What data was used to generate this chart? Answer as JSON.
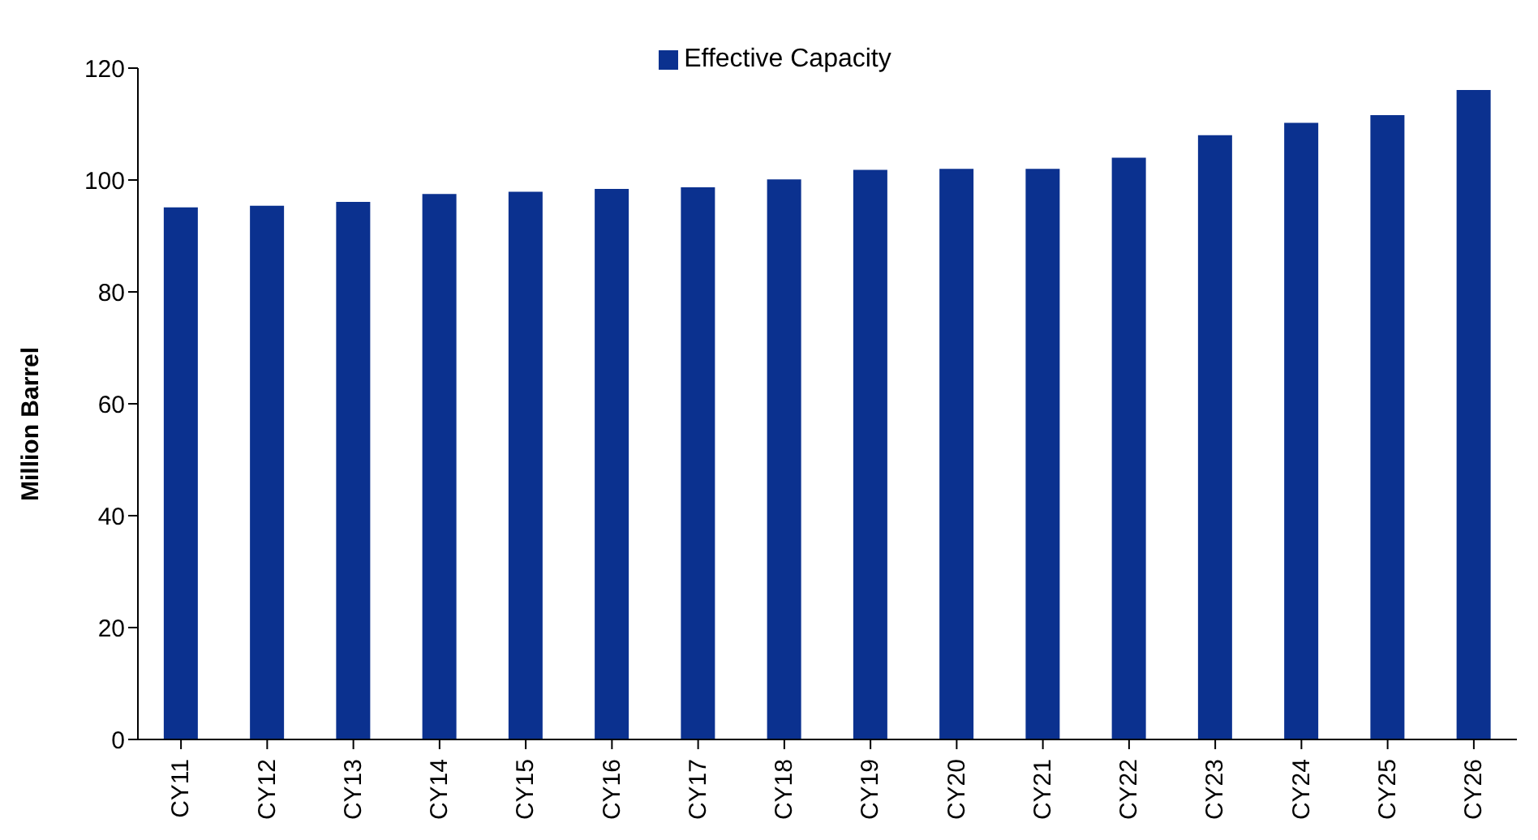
{
  "chart_data": {
    "type": "bar",
    "ylabel": "Million  Barrel",
    "categories": [
      "CY11",
      "CY12",
      "CY13",
      "CY14",
      "CY15",
      "CY16",
      "CY17",
      "CY18",
      "CY19",
      "CY20",
      "CY21",
      "CY22",
      "CY23",
      "CY24",
      "CY25",
      "CY26"
    ],
    "series": [
      {
        "name": "Effective Capacity",
        "color": "#0b318f",
        "values": [
          95.1,
          95.4,
          96.1,
          97.5,
          97.9,
          98.4,
          98.7,
          100.1,
          101.8,
          102.0,
          102.0,
          104.0,
          108.0,
          110.2,
          111.6,
          116.1
        ]
      }
    ],
    "ylim": [
      0,
      120
    ],
    "yticks": [
      0,
      20,
      40,
      60,
      80,
      100,
      120
    ],
    "grid": false,
    "legend": "top"
  }
}
